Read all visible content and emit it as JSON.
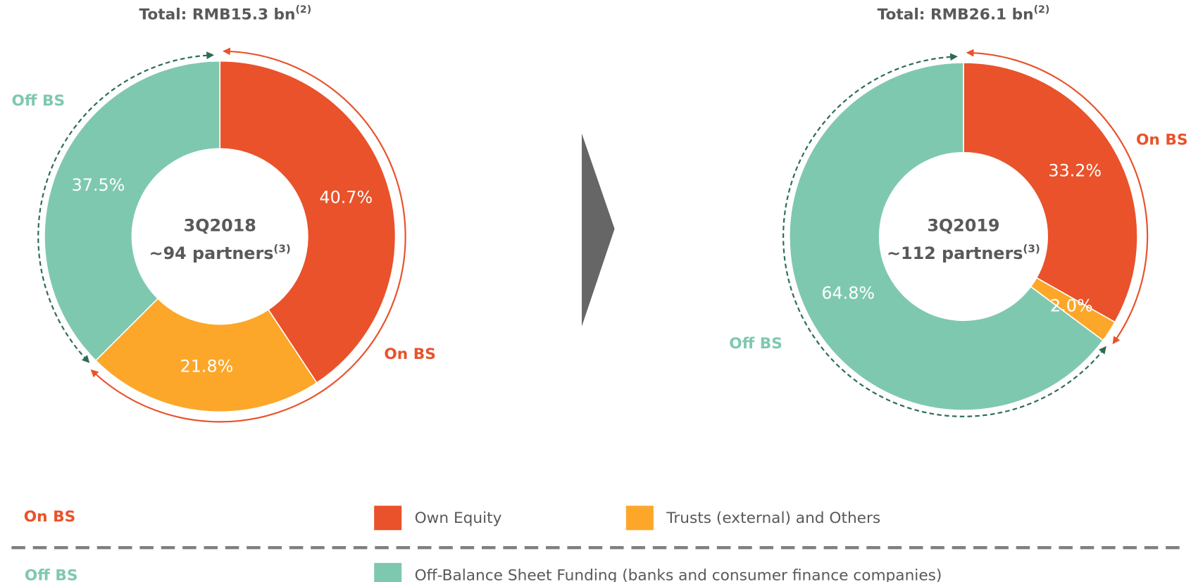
{
  "chart_data": [
    {
      "type": "pie",
      "title": "Total: RMB15.3 bn",
      "title_note": "(2)",
      "center_label": "3Q2018",
      "center_sub": "~94 partners",
      "center_note": "(3)",
      "categories": [
        "Own Equity",
        "Trusts (external) and Others",
        "Off-Balance Sheet Funding (banks and consumer finance companies)"
      ],
      "values": [
        40.7,
        21.8,
        37.5
      ],
      "value_labels": [
        "40.7%",
        "21.8%",
        "37.5%"
      ],
      "colors": [
        "#e9522a",
        "#fca72a",
        "#7fc8b0"
      ]
    },
    {
      "type": "pie",
      "title": "Total: RMB26.1 bn",
      "title_note": "(2)",
      "center_label": "3Q2019",
      "center_sub": "~112 partners",
      "center_note": "(3)",
      "categories": [
        "Own Equity",
        "Trusts (external) and Others",
        "Off-Balance Sheet Funding (banks and consumer finance companies)"
      ],
      "values": [
        33.2,
        2.0,
        64.8
      ],
      "value_labels": [
        "33.2%",
        "2.0%",
        "64.8%"
      ],
      "colors": [
        "#e9522a",
        "#fca72a",
        "#7fc8b0"
      ]
    }
  ],
  "legend": {
    "groups": [
      "On BS",
      "Off BS"
    ]
  }
}
